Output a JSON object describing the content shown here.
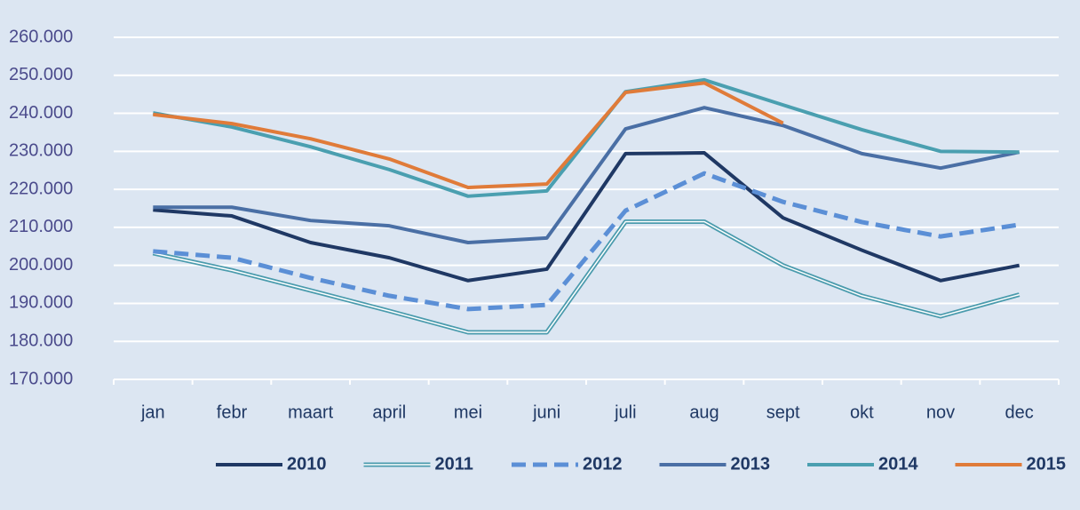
{
  "chart_data": {
    "type": "line",
    "categories": [
      "jan",
      "febr",
      "maart",
      "april",
      "mei",
      "juni",
      "juli",
      "aug",
      "sept",
      "okt",
      "nov",
      "dec"
    ],
    "series": [
      {
        "name": "2010",
        "color": "#1f3864",
        "line_style": "solid",
        "values": [
          214600,
          213000,
          206000,
          202000,
          196000,
          199000,
          229400,
          229600,
          212500,
          204000,
          196000,
          200000
        ]
      },
      {
        "name": "2011",
        "color": "#4a9bad",
        "line_style": "double",
        "values": [
          203200,
          198700,
          193400,
          188000,
          182400,
          182400,
          211500,
          211500,
          200000,
          192000,
          186600,
          192300
        ]
      },
      {
        "name": "2012",
        "color": "#5b8fd6",
        "line_style": "dashed",
        "values": [
          203700,
          202000,
          196700,
          192000,
          188500,
          189600,
          214400,
          224200,
          216700,
          211400,
          207600,
          210700
        ]
      },
      {
        "name": "2013",
        "color": "#4a6fa5",
        "line_style": "solid",
        "values": [
          215300,
          215300,
          211800,
          210400,
          206000,
          207200,
          235900,
          241500,
          236800,
          229400,
          225600,
          229800
        ]
      },
      {
        "name": "2014",
        "color": "#4a9fb0",
        "line_style": "solid",
        "values": [
          240100,
          236400,
          231200,
          225200,
          218200,
          219600,
          245700,
          248800,
          242200,
          235700,
          230000,
          229800
        ]
      },
      {
        "name": "2015",
        "color": "#e07b39",
        "line_style": "solid",
        "values": [
          239700,
          237300,
          233300,
          228000,
          220500,
          221400,
          245500,
          248000,
          237400,
          null,
          null,
          null
        ]
      }
    ],
    "ylim": [
      170000,
      260000
    ],
    "yticks": [
      {
        "value": 170000,
        "label": "170.000"
      },
      {
        "value": 180000,
        "label": "180.000"
      },
      {
        "value": 190000,
        "label": "190.000"
      },
      {
        "value": 200000,
        "label": "200.000"
      },
      {
        "value": 210000,
        "label": "210.000"
      },
      {
        "value": 220000,
        "label": "220.000"
      },
      {
        "value": 230000,
        "label": "230.000"
      },
      {
        "value": 240000,
        "label": "240.000"
      },
      {
        "value": 250000,
        "label": "250.000"
      },
      {
        "value": 260000,
        "label": "260.000"
      }
    ],
    "grid": true,
    "legend": "bottom"
  }
}
